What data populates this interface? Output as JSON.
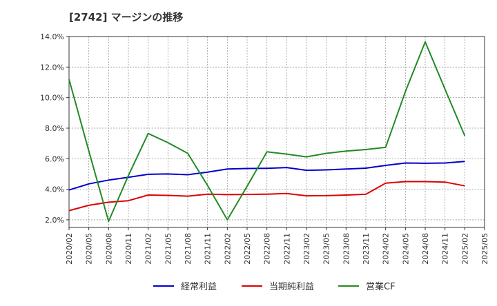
{
  "chart_data": {
    "type": "line",
    "title": "[2742]  マージンの推移",
    "xlabel": "",
    "ylabel": "",
    "ylim": [
      1.5,
      14.0
    ],
    "yticks": [
      "2.0%",
      "4.0%",
      "6.0%",
      "8.0%",
      "10.0%",
      "12.0%",
      "14.0%"
    ],
    "ytick_values": [
      2,
      4,
      6,
      8,
      10,
      12,
      14
    ],
    "xticks": [
      "2020/02",
      "2020/05",
      "2020/08",
      "2020/11",
      "2021/02",
      "2021/05",
      "2021/08",
      "2021/11",
      "2022/02",
      "2022/05",
      "2022/08",
      "2022/11",
      "2023/02",
      "2023/05",
      "2023/08",
      "2023/11",
      "2024/02",
      "2024/05",
      "2024/08",
      "2024/11",
      "2025/02",
      "2025/05"
    ],
    "grid": true,
    "legend_position": "bottom",
    "series": [
      {
        "name": "経常利益",
        "color": "#0000cc",
        "values": [
          3.95,
          4.35,
          4.6,
          4.78,
          4.98,
          5.0,
          4.95,
          5.12,
          5.32,
          5.36,
          5.37,
          5.42,
          5.24,
          5.27,
          5.32,
          5.38,
          5.56,
          5.72,
          5.7,
          5.72,
          5.82
        ]
      },
      {
        "name": "当期純利益",
        "color": "#dd0000",
        "values": [
          2.6,
          2.95,
          3.15,
          3.25,
          3.62,
          3.6,
          3.55,
          3.68,
          3.65,
          3.66,
          3.68,
          3.72,
          3.57,
          3.58,
          3.62,
          3.67,
          4.4,
          4.5,
          4.5,
          4.47,
          4.22
        ]
      },
      {
        "name": "営業CF",
        "color": "#228B22",
        "values": [
          11.2,
          6.5,
          1.9,
          4.9,
          7.65,
          7.05,
          6.35,
          4.25,
          2.0,
          4.2,
          6.45,
          6.3,
          6.12,
          6.35,
          6.5,
          6.6,
          6.75,
          10.4,
          13.65,
          10.55,
          7.5
        ]
      }
    ]
  }
}
